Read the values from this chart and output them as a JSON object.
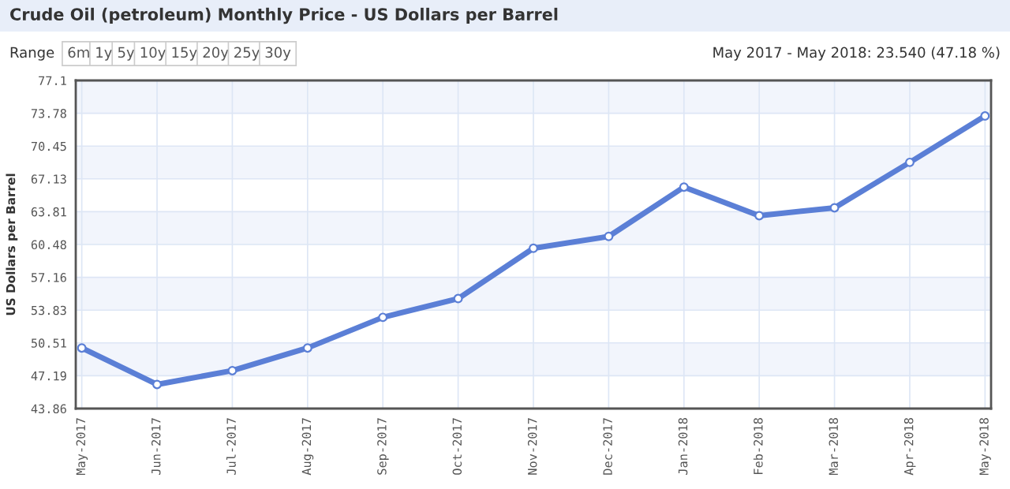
{
  "chart_data": {
    "type": "line",
    "title": "Crude Oil (petroleum) Monthly Price - US Dollars per Barrel",
    "ylabel": "US Dollars per Barrel",
    "annotations": [
      "Range",
      "6m",
      "1y",
      "5y",
      "10y",
      "15y",
      "20y",
      "25y",
      "30y",
      "May 2017 - May 2018: 23.540 (47.18 %)"
    ],
    "categories": [
      "May-2017",
      "Jun-2017",
      "Jul-2017",
      "Aug-2017",
      "Sep-2017",
      "Oct-2017",
      "Nov-2017",
      "Dec-2017",
      "Jan-2018",
      "Feb-2018",
      "Mar-2018",
      "Apr-2018",
      "May-2018"
    ],
    "series": [
      {
        "color": "#5b7fd6",
        "values": [
          50.0,
          46.3,
          47.7,
          50.0,
          53.1,
          55.0,
          60.1,
          61.3,
          66.3,
          63.4,
          64.2,
          68.8,
          73.5
        ]
      }
    ],
    "ylim": [
      43.86,
      77.1
    ],
    "yticks": [
      43.86,
      47.19,
      50.51,
      53.83,
      57.16,
      60.48,
      63.81,
      67.13,
      70.45,
      73.78,
      77.1
    ],
    "bands": [
      {
        "axis": "y",
        "from": 47.19,
        "to": 50.51,
        "color": "#f2f5fc"
      },
      {
        "axis": "y",
        "from": 53.83,
        "to": 57.16,
        "color": "#f2f5fc"
      },
      {
        "axis": "y",
        "from": 60.48,
        "to": 63.81,
        "color": "#f2f5fc"
      },
      {
        "axis": "y",
        "from": 67.13,
        "to": 70.45,
        "color": "#f2f5fc"
      },
      {
        "axis": "y",
        "from": 73.78,
        "to": 77.1,
        "color": "#f2f5fc"
      }
    ],
    "grid": true,
    "marker": "circle",
    "line_style": "solid",
    "legend": false
  }
}
